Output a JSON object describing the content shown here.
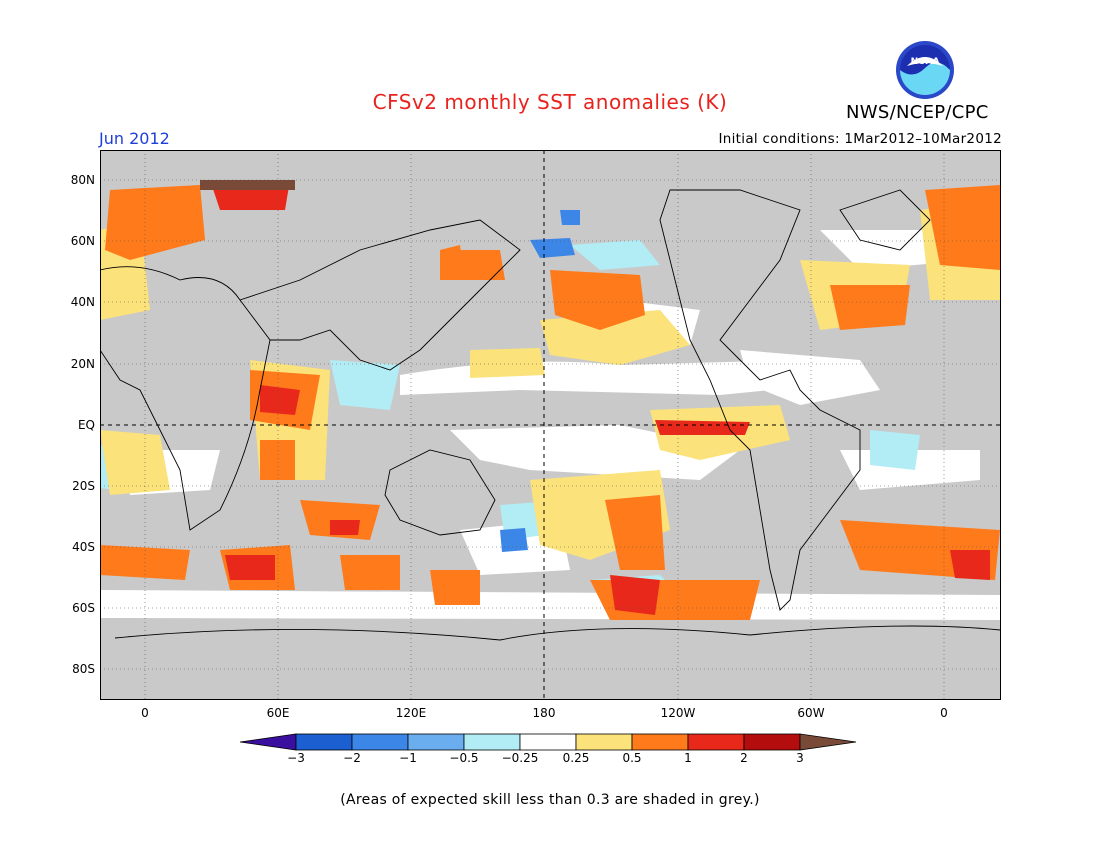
{
  "title": "CFSv2 monthly SST anomalies (K)",
  "agency": "NWS/NCEP/CPC",
  "month": "Jun 2012",
  "initial_conditions": "Initial conditions: 1Mar2012–10Mar2012",
  "note": "(Areas of expected skill less than 0.3 are shaded in grey.)",
  "logo_text": "NOAA",
  "lat_labels": [
    "80N",
    "60N",
    "40N",
    "20N",
    "EQ",
    "20S",
    "40S",
    "60S",
    "80S"
  ],
  "lon_labels": [
    "0",
    "60E",
    "120E",
    "180",
    "120W",
    "60W",
    "0"
  ],
  "colorbar": {
    "labels": [
      "−3",
      "−2",
      "−1",
      "−0.5",
      "−0.25",
      "0.25",
      "0.5",
      "1",
      "2",
      "3"
    ],
    "colors": [
      "#3a0fa0",
      "#1c5fd0",
      "#3c86e8",
      "#6aaef0",
      "#b2ecf5",
      "#ffffff",
      "#fbe27a",
      "#ff7a1a",
      "#e8281a",
      "#b40d0d",
      "#7a4a38"
    ]
  },
  "colors": {
    "skill_grey": "#c9c9c9",
    "title_red": "#e8231e",
    "month_blue": "#1f3fd6"
  }
}
